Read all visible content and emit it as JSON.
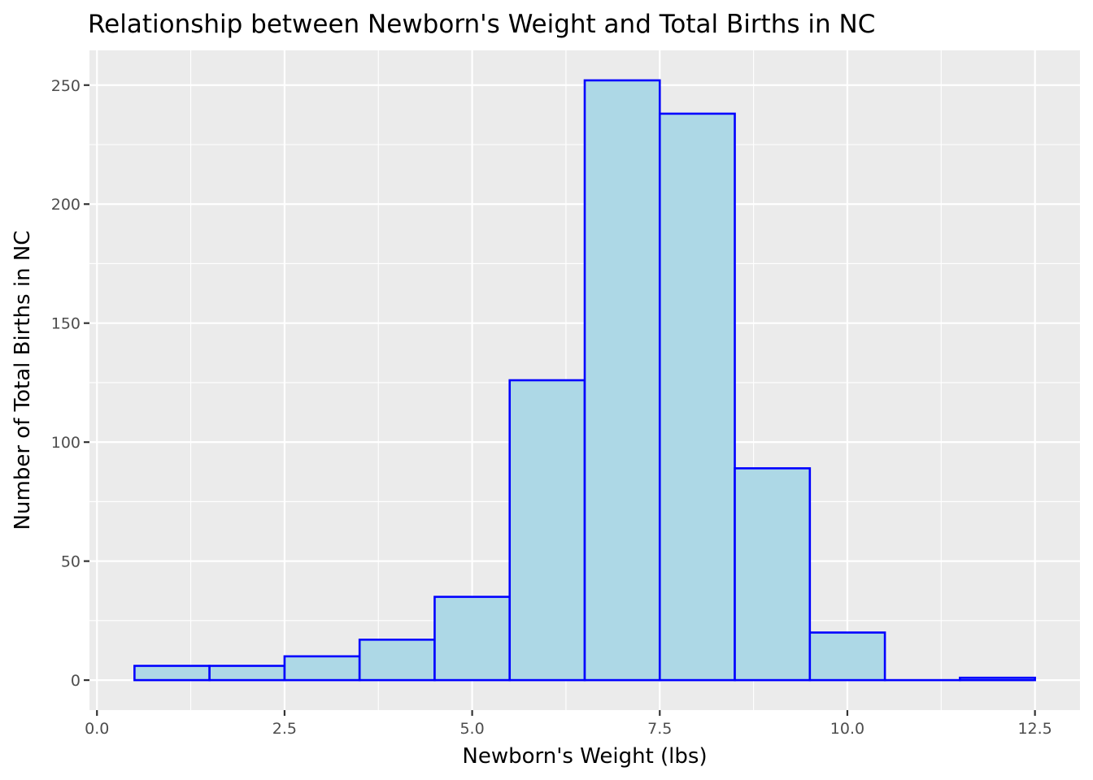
{
  "chart_data": {
    "type": "bar",
    "subtype": "histogram",
    "title": "Relationship between Newborn's Weight and Total Births in NC",
    "xlabel": "Newborn's Weight (lbs)",
    "ylabel": "Number of Total Births in NC",
    "xlim": [
      -0.1,
      13.1
    ],
    "ylim": [
      -12.6,
      264.6
    ],
    "x_ticks": [
      "0.0",
      "2.5",
      "5.0",
      "7.5",
      "10.0",
      "12.5"
    ],
    "x_tick_values": [
      0,
      2.5,
      5,
      7.5,
      10,
      12.5
    ],
    "y_ticks": [
      "0",
      "50",
      "100",
      "150",
      "200",
      "250"
    ],
    "y_tick_values": [
      0,
      50,
      100,
      150,
      200,
      250
    ],
    "bin_width": 1,
    "bins": [
      {
        "x0": 0.5,
        "x1": 1.5,
        "count": 6
      },
      {
        "x0": 1.5,
        "x1": 2.5,
        "count": 6
      },
      {
        "x0": 2.5,
        "x1": 3.5,
        "count": 10
      },
      {
        "x0": 3.5,
        "x1": 4.5,
        "count": 17
      },
      {
        "x0": 4.5,
        "x1": 5.5,
        "count": 35
      },
      {
        "x0": 5.5,
        "x1": 6.5,
        "count": 126
      },
      {
        "x0": 6.5,
        "x1": 7.5,
        "count": 252
      },
      {
        "x0": 7.5,
        "x1": 8.5,
        "count": 238
      },
      {
        "x0": 8.5,
        "x1": 9.5,
        "count": 89
      },
      {
        "x0": 9.5,
        "x1": 10.5,
        "count": 20
      },
      {
        "x0": 10.5,
        "x1": 11.5,
        "count": 0
      },
      {
        "x0": 11.5,
        "x1": 12.5,
        "count": 1
      }
    ],
    "grid": true,
    "legend": "none",
    "colors": {
      "bar_fill": "#ADD8E6",
      "bar_outline": "#0000FF",
      "panel_background": "#EBEBEB",
      "grid": "#FFFFFF"
    }
  }
}
